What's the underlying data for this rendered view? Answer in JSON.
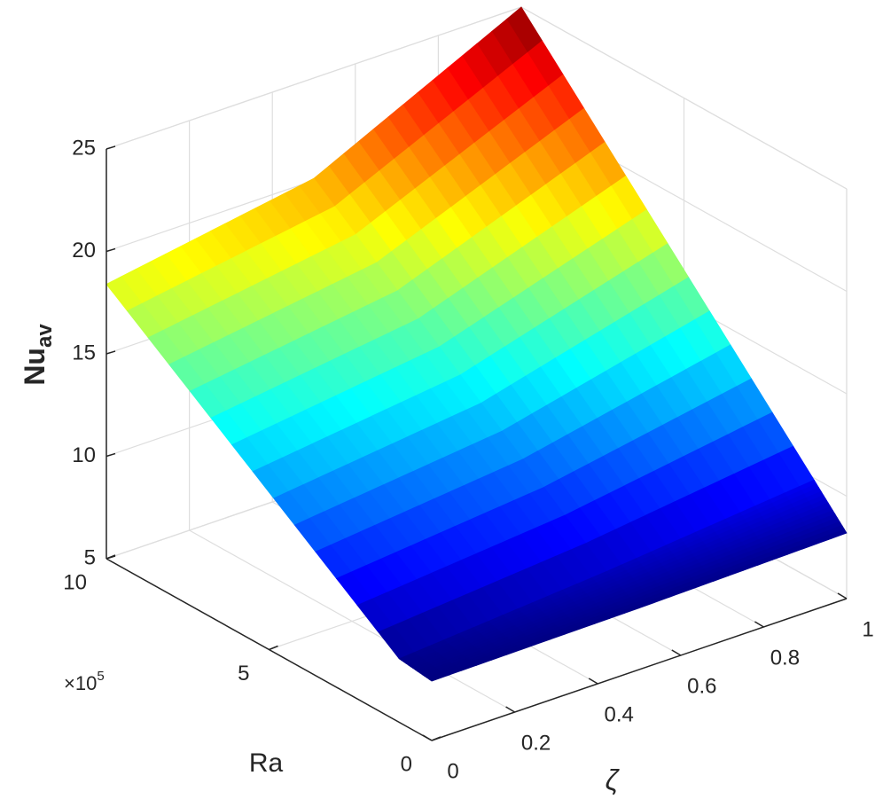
{
  "chart_data": {
    "type": "surface",
    "x_label": "Ra",
    "y_label": "ζ",
    "z_label": "Nu",
    "z_label_subscript": "av",
    "x_multiplier": {
      "base": "×10",
      "exponent": "5"
    },
    "x": [
      0,
      1,
      10
    ],
    "y": [
      0,
      0.5,
      1
    ],
    "z": [
      [
        7.9,
        8.1,
        18.4
      ],
      [
        8.0,
        8.9,
        20.1
      ],
      [
        8.2,
        9.9,
        25
      ]
    ],
    "xlim": [
      0,
      10
    ],
    "xticks": [
      0,
      5,
      10
    ],
    "ylim": [
      0,
      1
    ],
    "yticks": [
      0,
      0.2,
      0.4,
      0.6,
      0.8,
      1
    ],
    "zlim": [
      5,
      25
    ],
    "zticks": [
      5,
      10,
      15,
      20,
      25
    ],
    "colormap": "jet",
    "grid": true
  }
}
